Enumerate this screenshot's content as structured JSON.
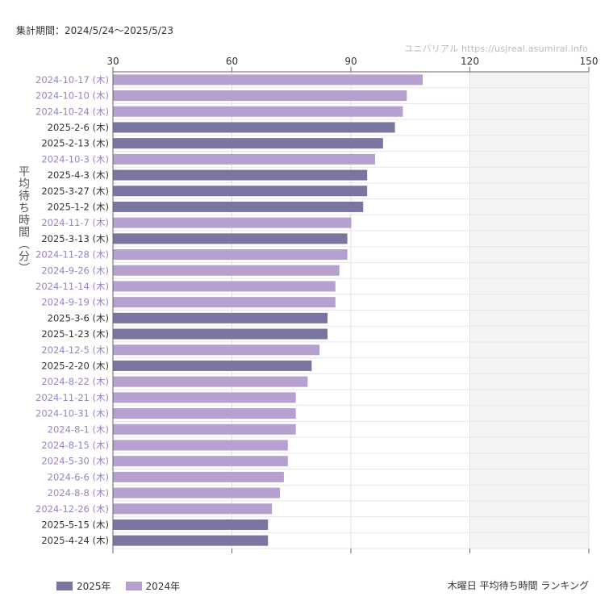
{
  "header": {
    "period": "集計期間：2024/5/24〜2025/5/23",
    "source": "ユニバリアル  https://usjreal.asumirai.info"
  },
  "chart_data": {
    "type": "bar",
    "orientation": "horizontal",
    "ylabel": "平均待ち時間（分）",
    "xlim": [
      30,
      150
    ],
    "xticks": [
      30,
      60,
      90,
      120,
      150
    ],
    "shaded_from": 120,
    "grid": true,
    "legend_position": "bottom-left",
    "series_colors": {
      "2025年": "#7b76a0",
      "2024年": "#b5a0cf"
    },
    "label_colors": {
      "2025年": "#333333",
      "2024年": "#9b82c0"
    },
    "categories": [
      "2024-10-17 (木)",
      "2024-10-10 (木)",
      "2024-10-24 (木)",
      "2025-2-6 (木)",
      "2025-2-13 (木)",
      "2024-10-3 (木)",
      "2025-4-3 (木)",
      "2025-3-27 (木)",
      "2025-1-2 (木)",
      "2024-11-7 (木)",
      "2025-3-13 (木)",
      "2024-11-28 (木)",
      "2024-9-26 (木)",
      "2024-11-14 (木)",
      "2024-9-19 (木)",
      "2025-3-6 (木)",
      "2025-1-23 (木)",
      "2024-12-5 (木)",
      "2025-2-20 (木)",
      "2024-8-22 (木)",
      "2024-11-21 (木)",
      "2024-10-31 (木)",
      "2024-8-1 (木)",
      "2024-8-15 (木)",
      "2024-5-30 (木)",
      "2024-6-6 (木)",
      "2024-8-8 (木)",
      "2024-12-26 (木)",
      "2025-5-15 (木)",
      "2025-4-24 (木)"
    ],
    "values": [
      108,
      104,
      103,
      101,
      98,
      96,
      94,
      94,
      93,
      90,
      89,
      89,
      87,
      86,
      86,
      84,
      84,
      82,
      80,
      79,
      76,
      76,
      76,
      74,
      74,
      73,
      72,
      70,
      69,
      69
    ],
    "year": [
      "2024年",
      "2024年",
      "2024年",
      "2025年",
      "2025年",
      "2024年",
      "2025年",
      "2025年",
      "2025年",
      "2024年",
      "2025年",
      "2024年",
      "2024年",
      "2024年",
      "2024年",
      "2025年",
      "2025年",
      "2024年",
      "2025年",
      "2024年",
      "2024年",
      "2024年",
      "2024年",
      "2024年",
      "2024年",
      "2024年",
      "2024年",
      "2024年",
      "2025年",
      "2025年"
    ]
  },
  "legend": {
    "items": [
      {
        "label": "2025年",
        "color": "#7b76a0"
      },
      {
        "label": "2024年",
        "color": "#b5a0cf"
      }
    ]
  },
  "footer": {
    "caption": "木曜日 平均待ち時間 ランキング"
  }
}
